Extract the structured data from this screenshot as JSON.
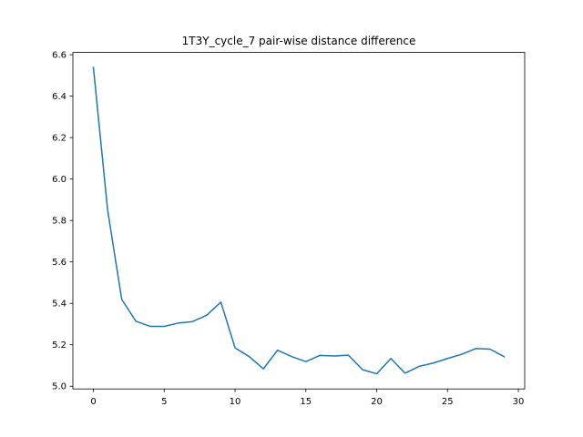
{
  "chart_data": {
    "type": "line",
    "title": "1T3Y_cycle_7 pair-wise distance difference",
    "xlabel": "",
    "ylabel": "",
    "xlim": [
      -1.45,
      30.45
    ],
    "ylim": [
      4.987,
      6.611
    ],
    "xticks": [
      0,
      5,
      10,
      15,
      20,
      25,
      30
    ],
    "yticks": [
      5.0,
      5.2,
      5.4,
      5.6,
      5.8,
      6.0,
      6.2,
      6.4,
      6.6
    ],
    "grid": false,
    "series": [
      {
        "color": "#1f77b4",
        "x": [
          0,
          1,
          2,
          3,
          4,
          5,
          6,
          7,
          8,
          9,
          10,
          11,
          12,
          13,
          14,
          15,
          16,
          17,
          18,
          19,
          20,
          21,
          22,
          23,
          24,
          25,
          26,
          27,
          28,
          29
        ],
        "values": [
          6.538,
          5.852,
          5.419,
          5.314,
          5.289,
          5.289,
          5.305,
          5.312,
          5.343,
          5.406,
          5.185,
          5.143,
          5.084,
          5.174,
          5.143,
          5.119,
          5.149,
          5.146,
          5.15,
          5.08,
          5.06,
          5.134,
          5.063,
          5.096,
          5.112,
          5.134,
          5.154,
          5.182,
          5.179,
          5.143
        ]
      }
    ]
  }
}
